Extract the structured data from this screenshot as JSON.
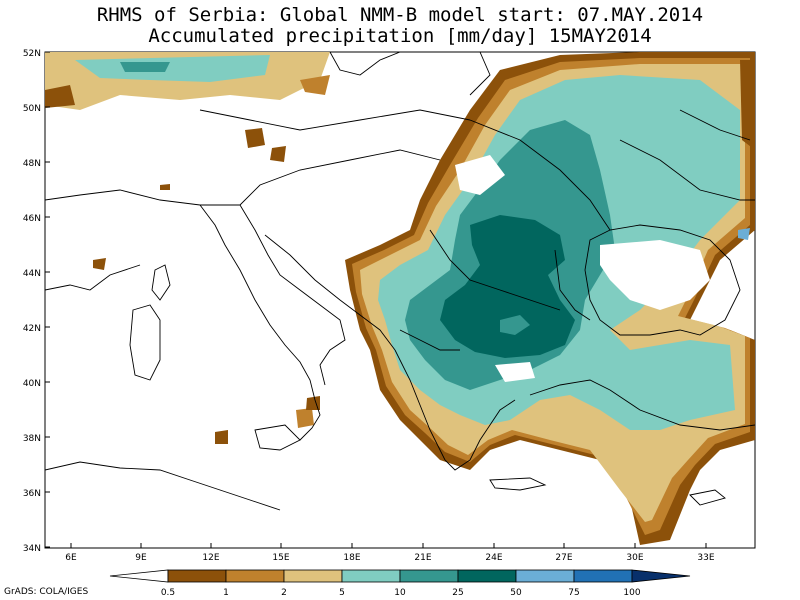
{
  "title": {
    "line1": "RHMS of Serbia: Global NMM-B model   start: 07.MAY.2014",
    "line2": "Accumulated precipitation [mm/day]  15MAY2014"
  },
  "map": {
    "lat_labels": [
      "52N",
      "50N",
      "48N",
      "46N",
      "44N",
      "42N",
      "40N",
      "38N",
      "36N",
      "34N"
    ],
    "lon_labels": [
      "6E",
      "9E",
      "12E",
      "15E",
      "18E",
      "21E",
      "24E",
      "27E",
      "30E",
      "33E"
    ]
  },
  "colorbar": {
    "labels": [
      "0.5",
      "1",
      "2",
      "5",
      "10",
      "25",
      "50",
      "75",
      "100"
    ],
    "colors": [
      "#ffffff",
      "#8c510a",
      "#bf812d",
      "#dfc27d",
      "#80cdc1",
      "#35978f",
      "#01665e",
      "#6baed6",
      "#2171b5",
      "#08306b"
    ]
  },
  "credit": "GrADS: COLA/IGES"
}
